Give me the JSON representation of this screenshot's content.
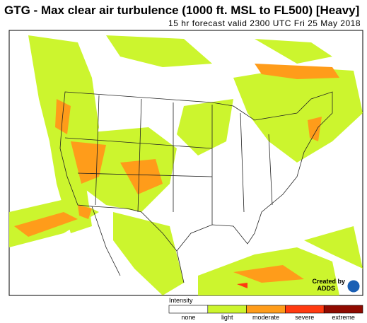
{
  "header": {
    "title": "GTG - Max clear air turbulence (1000 ft. MSL to FL500) [Heavy]",
    "subtitle": "15 hr forecast valid 2300 UTC Fri 25 May 2018"
  },
  "legend": {
    "title": "Intensity",
    "items": [
      {
        "label": "none",
        "color": "#ffffff"
      },
      {
        "label": "light",
        "color": "#ccf52e"
      },
      {
        "label": "moderate",
        "color": "#ff9c1a"
      },
      {
        "label": "severe",
        "color": "#ff3a10"
      },
      {
        "label": "extreme",
        "color": "#8f0a00"
      }
    ]
  },
  "credit": {
    "line1": "Created by",
    "line2": "ADDS"
  }
}
